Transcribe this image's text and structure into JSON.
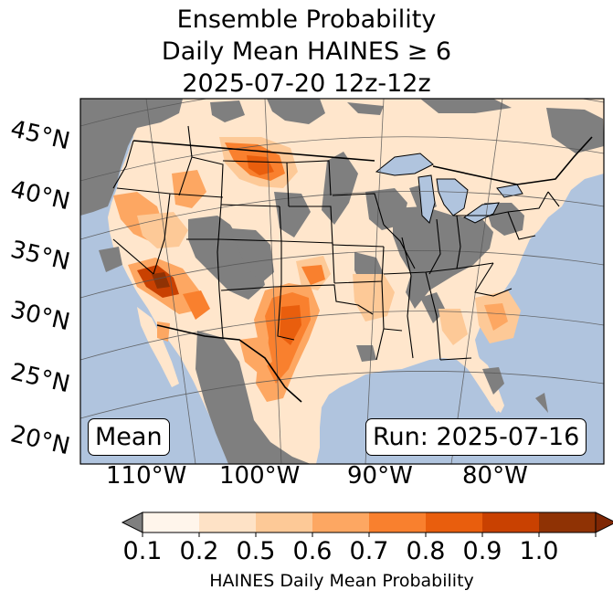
{
  "title": {
    "line1": "Ensemble Probability",
    "line2": "Daily Mean HAINES ≥ 6",
    "line3": "2025-07-20 12z-12z"
  },
  "map": {
    "latitude_labels": [
      "45°N",
      "40°N",
      "35°N",
      "30°N",
      "25°N",
      "20°N"
    ],
    "longitude_labels": [
      "110°W",
      "100°W",
      "90°W",
      "80°W"
    ],
    "stat_box": "Mean",
    "run_box": "Run: 2025-07-16"
  },
  "colorbar": {
    "label": "HAINES Daily Mean Probability",
    "ticks": [
      "0.1",
      "0.2",
      "0.5",
      "0.6",
      "0.7",
      "0.8",
      "0.9",
      "1.0"
    ],
    "colors": [
      "#fff5eb",
      "#fee2c6",
      "#fdc997",
      "#fda762",
      "#f9802e",
      "#e95e0d",
      "#c94101",
      "#8f3204"
    ],
    "under_color": "#7f7f7f",
    "over_color": "#7f2704"
  },
  "colors": {
    "ocean": "#b0c4de",
    "masked_land": "#7f7f7f",
    "border": "#000000",
    "graticule": "#555555"
  }
}
